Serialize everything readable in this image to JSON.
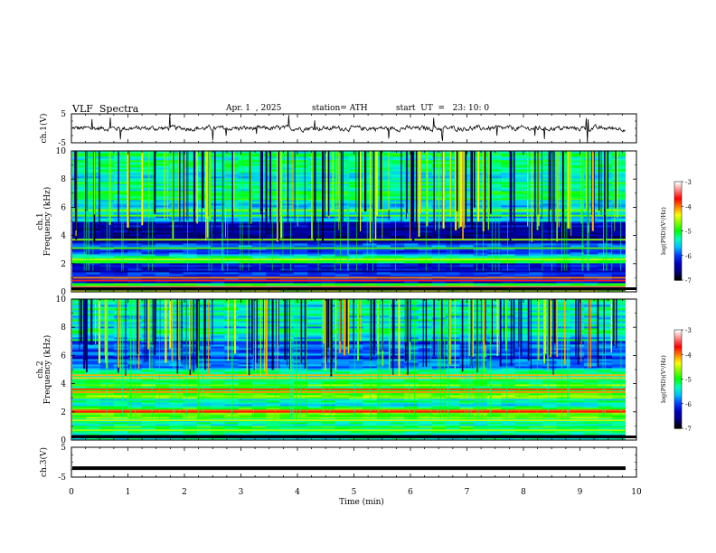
{
  "header": {
    "title": "VLF  Spectra",
    "date": "Apr. 1  , 2025",
    "station": "station= ATH",
    "start_ut": "start  UT  =   23: 10: 0"
  },
  "chart_data": [
    {
      "type": "line",
      "ylabel": "ch.1(V)",
      "ylim": [
        -5,
        5
      ],
      "yticks": [
        5,
        -5
      ],
      "xlim": [
        0,
        10
      ],
      "trace": "noisy waveform around 0 V, amplitude about ±1 V",
      "color": "#000000"
    },
    {
      "type": "heatmap",
      "ylabel": "ch.1\nFrequency  (kHz)",
      "ylim": [
        0,
        10
      ],
      "yticks": [
        0,
        2,
        4,
        6,
        8,
        10
      ],
      "xlim": [
        0,
        9.8
      ],
      "colorbar": {
        "label": "log(PSD)(V²/Hz)",
        "range": [
          -7,
          -3
        ],
        "ticks": [
          -3,
          -4,
          -5,
          -6,
          -7
        ]
      }
    },
    {
      "type": "heatmap",
      "ylabel": "ch.2\nFrequency  (kHz)",
      "ylim": [
        0,
        10
      ],
      "yticks": [
        0,
        2,
        4,
        6,
        8,
        10
      ],
      "xlim": [
        0,
        9.8
      ],
      "colorbar": {
        "label": "log(PSD)(V²/Hz)",
        "range": [
          -7,
          -3
        ],
        "ticks": [
          -3,
          -4,
          -5,
          -6,
          -7
        ]
      }
    },
    {
      "type": "line",
      "ylabel": "ch.3(V)",
      "ylim": [
        -5,
        5
      ],
      "yticks": [
        5,
        -5
      ],
      "xlim": [
        0,
        10
      ],
      "trace": "flat thick line at about -2 V",
      "color": "#000000"
    }
  ],
  "xaxis": {
    "label": "Time  (min)",
    "ticks": [
      0,
      1,
      2,
      3,
      4,
      5,
      6,
      7,
      8,
      9,
      10
    ]
  },
  "colorbar_label_text": "log(PSD)(V²/Hz)",
  "colormap": [
    "#ffffff",
    "#ff8080",
    "#ff0000",
    "#ff8000",
    "#ffff00",
    "#80ff00",
    "#00ff00",
    "#00ffc0",
    "#00c0ff",
    "#0040ff",
    "#0000c0",
    "#000080",
    "#000000"
  ]
}
